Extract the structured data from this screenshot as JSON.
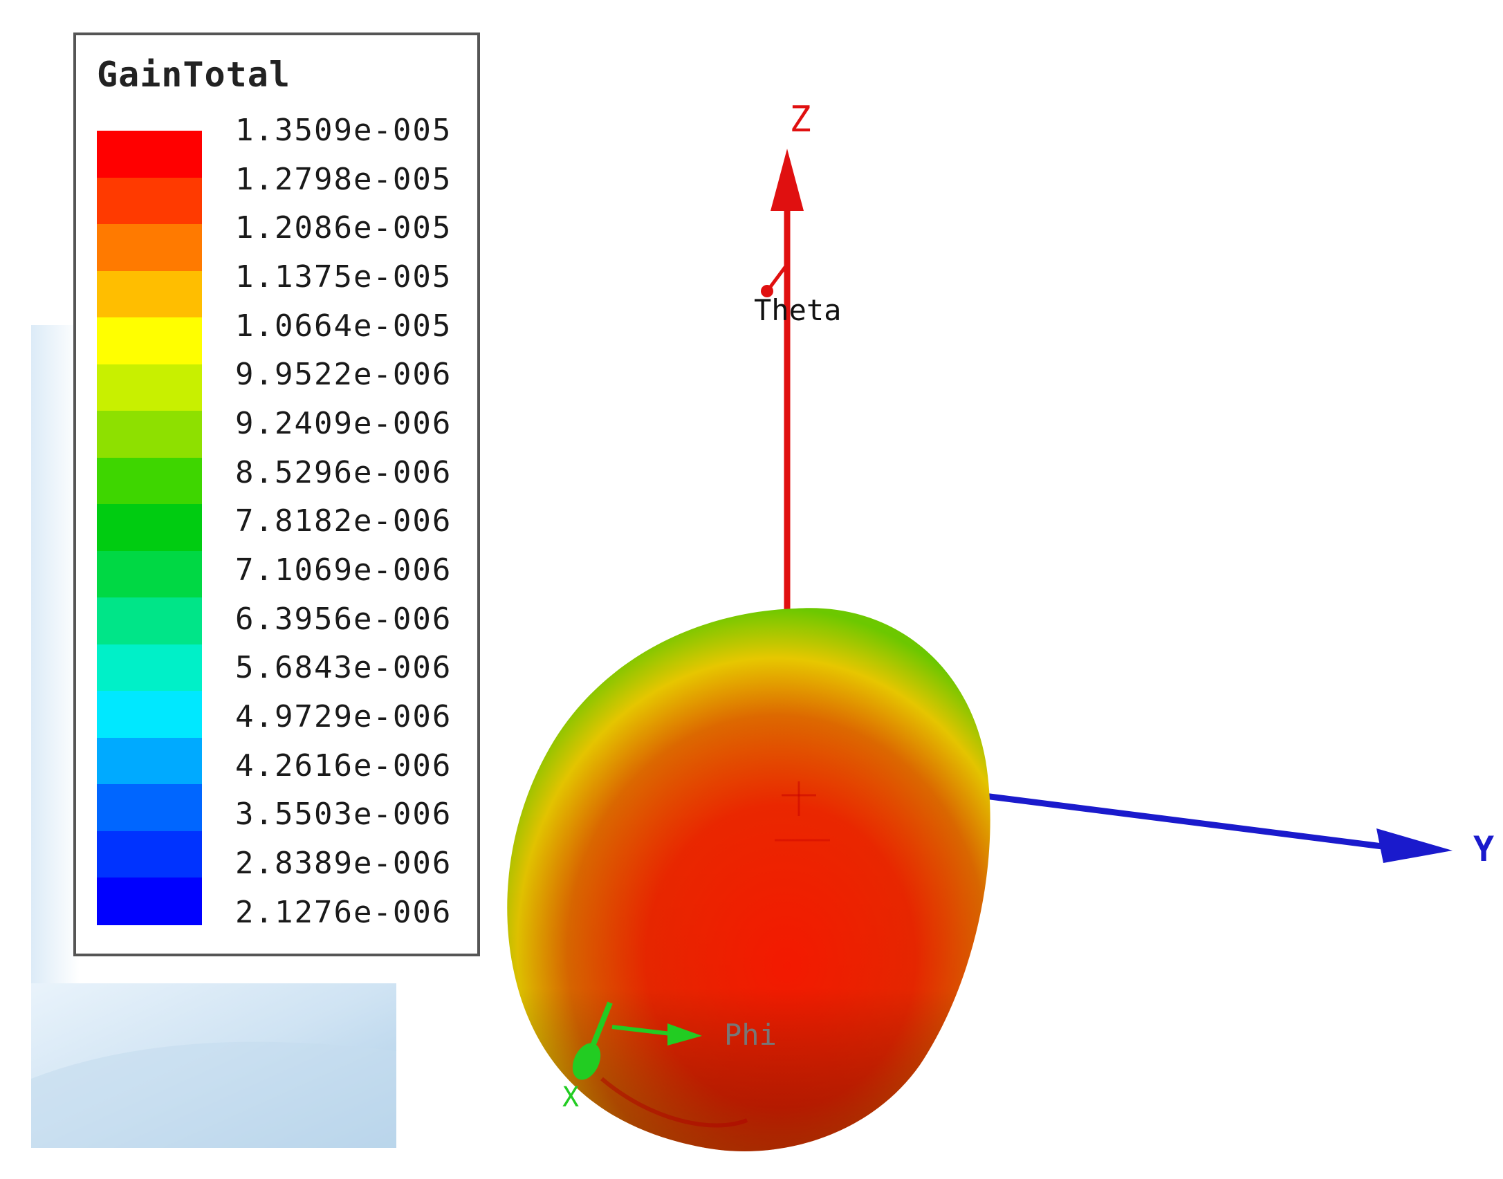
{
  "legend": {
    "title": "GainTotal",
    "values": [
      "1.3509e-005",
      "1.2798e-005",
      "1.2086e-005",
      "1.1375e-005",
      "1.0664e-005",
      "9.9522e-006",
      "9.2409e-006",
      "8.5296e-006",
      "7.8182e-006",
      "7.1069e-006",
      "6.3956e-006",
      "5.6843e-006",
      "4.9729e-006",
      "4.2616e-006",
      "3.5503e-006",
      "2.8389e-006",
      "2.1276e-006"
    ],
    "colors": [
      "#ff0000",
      "#ff3a00",
      "#ff7a00",
      "#ffbe00",
      "#ffff00",
      "#c8f000",
      "#8ee000",
      "#3ed600",
      "#00cc11",
      "#00d844",
      "#00e588",
      "#00f0c8",
      "#00e8ff",
      "#00aaff",
      "#0066ff",
      "#0033ff",
      "#0000ff"
    ]
  },
  "axes": {
    "z": {
      "label": "Z",
      "color": "#e01010"
    },
    "y": {
      "label": "Y",
      "color": "#1a1acc"
    },
    "x": {
      "label": "X",
      "color": "#22cc22"
    }
  },
  "annotations": {
    "theta": "Theta",
    "phi": "Phi"
  },
  "pattern": {
    "color_peak": "#ff1a00",
    "color_mid": "#e8c800",
    "color_edge": "#6cc800"
  }
}
